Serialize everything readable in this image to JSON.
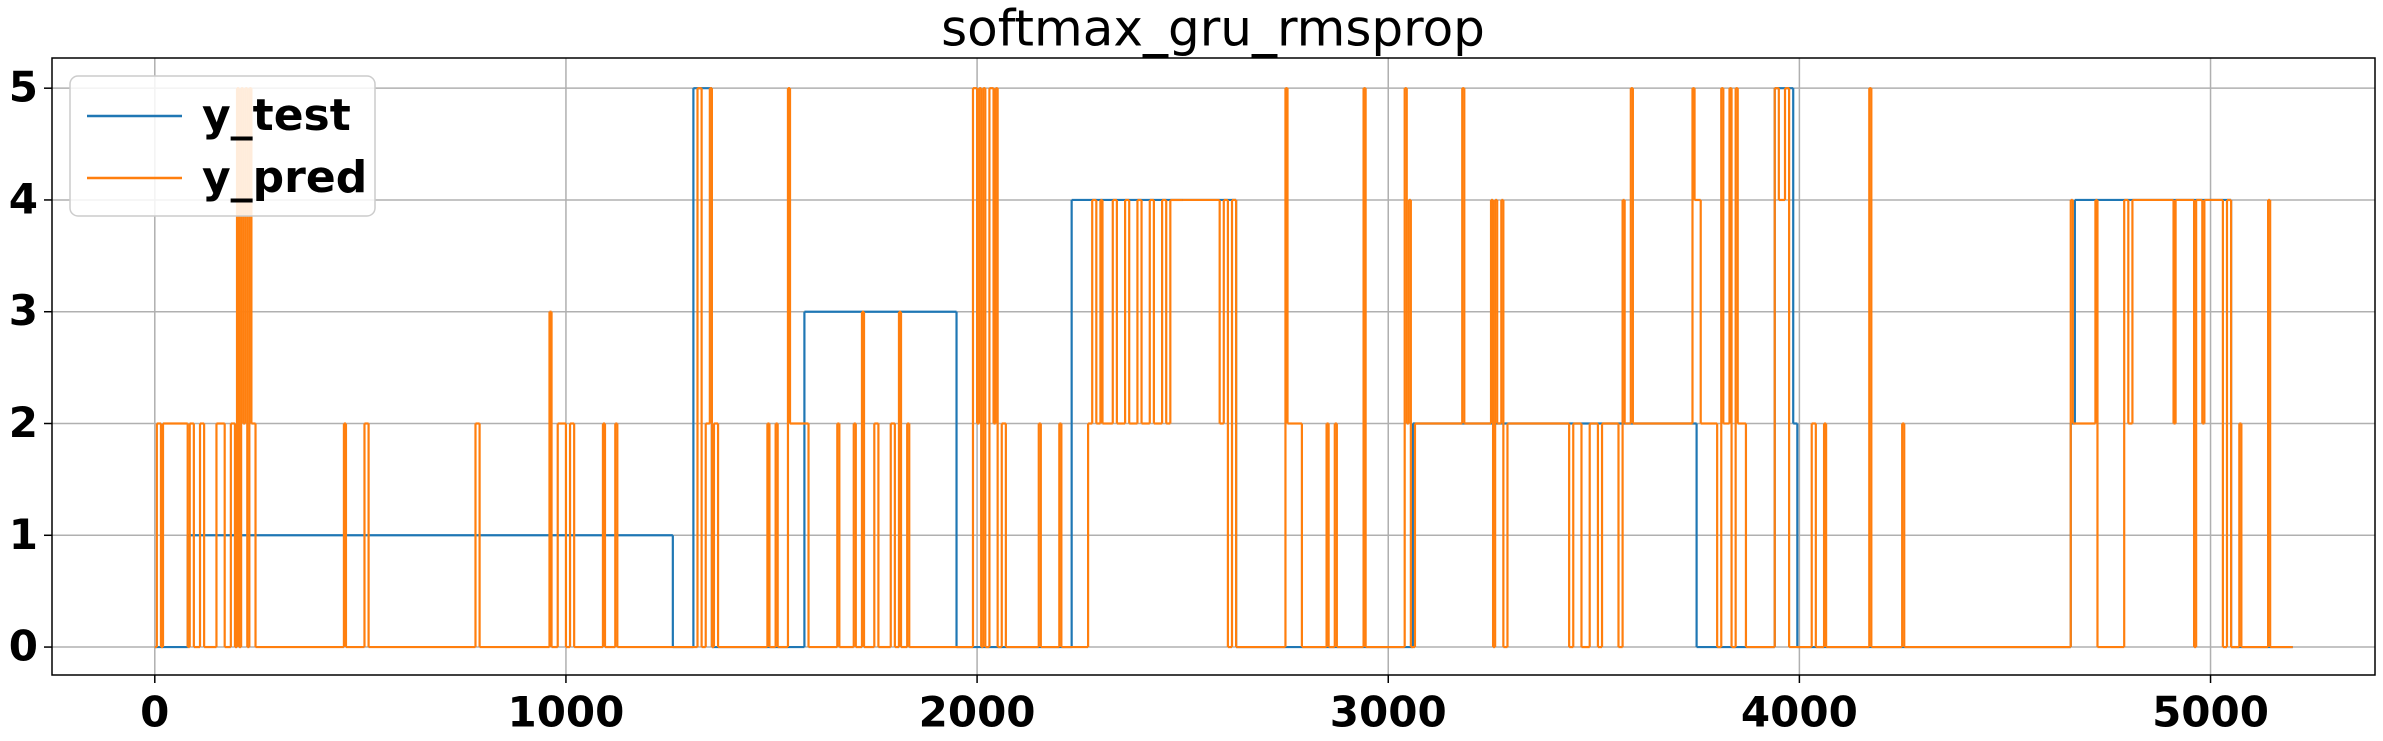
{
  "chart_data": {
    "type": "line",
    "drawstyle": "steps-post",
    "title": "softmax_gru_rmsprop",
    "xlim": [
      -250,
      5400
    ],
    "ylim": [
      -0.25,
      5.27
    ],
    "xticks": [
      0,
      1000,
      2000,
      3000,
      4000,
      5000
    ],
    "yticks": [
      0,
      1,
      2,
      3,
      4,
      5
    ],
    "grid": true,
    "legend": "upper left",
    "series": [
      {
        "name": "y_test",
        "color": "#1f77b4",
        "x": [
          0,
          80,
          1260,
          1310,
          1355,
          1580,
          1950,
          2230,
          2630,
          3060,
          3750,
          3940,
          3985,
          3995,
          4660,
          4670,
          5050,
          5200
        ],
        "values": [
          0,
          1,
          0,
          5,
          0,
          3,
          0,
          4,
          0,
          2,
          0,
          5,
          2,
          0,
          2,
          4,
          0,
          0
        ]
      },
      {
        "name": "y_pred",
        "color": "#ff7f0e",
        "x": [
          0,
          5,
          15,
          20,
          80,
          85,
          95,
          110,
          120,
          150,
          170,
          185,
          195,
          200,
          205,
          210,
          215,
          220,
          225,
          230,
          235,
          245,
          460,
          465,
          510,
          520,
          780,
          790,
          960,
          965,
          980,
          1000,
          1010,
          1020,
          1090,
          1095,
          1120,
          1125,
          1320,
          1330,
          1340,
          1350,
          1355,
          1360,
          1370,
          1490,
          1495,
          1510,
          1515,
          1540,
          1545,
          1590,
          1660,
          1665,
          1700,
          1705,
          1720,
          1725,
          1750,
          1760,
          1790,
          1800,
          1810,
          1815,
          1830,
          1835,
          1990,
          2000,
          2005,
          2010,
          2015,
          2020,
          2030,
          2040,
          2045,
          2050,
          2060,
          2070,
          2150,
          2155,
          2200,
          2205,
          2270,
          2280,
          2290,
          2300,
          2305,
          2330,
          2340,
          2360,
          2370,
          2390,
          2400,
          2420,
          2430,
          2450,
          2460,
          2470,
          2500,
          2590,
          2600,
          2610,
          2620,
          2630,
          2750,
          2755,
          2790,
          2850,
          2855,
          2870,
          2875,
          2940,
          2945,
          3040,
          3045,
          3050,
          3055,
          3065,
          3180,
          3185,
          3250,
          3255,
          3260,
          3265,
          3275,
          3280,
          3290,
          3440,
          3450,
          3470,
          3490,
          3510,
          3520,
          3560,
          3570,
          3575,
          3590,
          3595,
          3740,
          3745,
          3760,
          3800,
          3810,
          3815,
          3830,
          3835,
          3845,
          3850,
          3870,
          3940,
          3950,
          3965,
          3975,
          4030,
          4040,
          4060,
          4065,
          4170,
          4175,
          4250,
          4255,
          4660,
          4665,
          4720,
          4725,
          4790,
          4800,
          4810,
          4910,
          4915,
          4960,
          4965,
          4980,
          4985,
          5030,
          5040,
          5050,
          5070,
          5075,
          5140,
          5145,
          5200
        ],
        "values": [
          0,
          2,
          0,
          2,
          0,
          2,
          0,
          2,
          0,
          2,
          0,
          2,
          0,
          5,
          0,
          5,
          2,
          5,
          0,
          5,
          2,
          0,
          2,
          0,
          2,
          0,
          2,
          0,
          3,
          0,
          2,
          0,
          2,
          0,
          2,
          0,
          2,
          0,
          5,
          0,
          2,
          5,
          0,
          2,
          0,
          2,
          0,
          2,
          0,
          5,
          2,
          0,
          2,
          0,
          2,
          0,
          3,
          0,
          2,
          0,
          2,
          0,
          3,
          0,
          2,
          0,
          5,
          2,
          5,
          0,
          5,
          0,
          5,
          2,
          5,
          0,
          2,
          0,
          2,
          0,
          2,
          0,
          2,
          4,
          2,
          4,
          2,
          4,
          2,
          4,
          2,
          4,
          2,
          4,
          2,
          4,
          2,
          4,
          4,
          2,
          4,
          0,
          4,
          0,
          5,
          2,
          0,
          2,
          0,
          2,
          0,
          5,
          0,
          5,
          2,
          4,
          0,
          2,
          5,
          2,
          4,
          0,
          4,
          2,
          4,
          0,
          2,
          0,
          2,
          0,
          2,
          0,
          2,
          0,
          4,
          2,
          5,
          2,
          5,
          4,
          2,
          0,
          5,
          2,
          5,
          0,
          5,
          2,
          0,
          5,
          4,
          5,
          0,
          2,
          0,
          2,
          0,
          5,
          0,
          2,
          0,
          4,
          2,
          4,
          0,
          4,
          2,
          4,
          2,
          4,
          0,
          4,
          2,
          4,
          0,
          4,
          0,
          2,
          0,
          4,
          0,
          0
        ]
      }
    ]
  }
}
